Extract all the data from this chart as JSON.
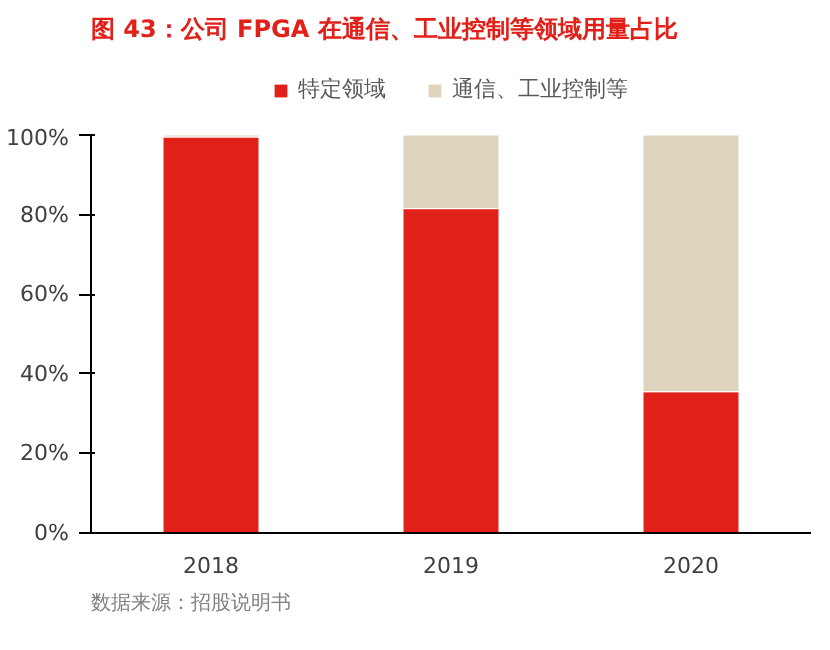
{
  "chart_data": {
    "type": "bar",
    "title": "图 43：公司 FPGA 在通信、工业控制等领域用量占比",
    "categories": [
      "2018",
      "2019",
      "2020"
    ],
    "stacked": true,
    "series": [
      {
        "name": "特定领域",
        "color": "#e2201a",
        "values": [
          99.5,
          81.5,
          35.5
        ]
      },
      {
        "name": "通信、工业控制等",
        "color": "#ded3bd",
        "values": [
          0.5,
          18.5,
          64.5
        ]
      }
    ],
    "ylim": [
      0,
      100
    ],
    "yticks": [
      {
        "value": 0,
        "label": "0%"
      },
      {
        "value": 20,
        "label": "20%"
      },
      {
        "value": 40,
        "label": "40%"
      },
      {
        "value": 60,
        "label": "60%"
      },
      {
        "value": 80,
        "label": "80%"
      },
      {
        "value": 100,
        "label": "100%"
      }
    ],
    "grid": false,
    "legend": "top",
    "annotations": [
      "数据来源：招股说明书"
    ]
  }
}
